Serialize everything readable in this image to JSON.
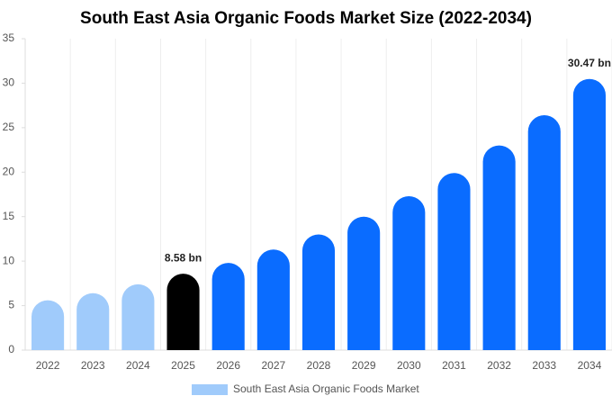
{
  "chart_data": {
    "type": "bar",
    "title": "South East Asia Organic Foods Market Size (2022-2034)",
    "categories": [
      "2022",
      "2023",
      "2024",
      "2025",
      "2026",
      "2027",
      "2028",
      "2029",
      "2030",
      "2031",
      "2032",
      "2033",
      "2034"
    ],
    "series": [
      {
        "name": "South East Asia Organic Foods Market",
        "color": "#a0cbfb",
        "values": [
          5.6,
          6.4,
          7.4,
          8.58,
          9.8,
          11.3,
          13.0,
          15.0,
          17.3,
          19.9,
          23.0,
          26.4,
          30.47
        ],
        "value_labels": [
          null,
          null,
          null,
          "8.58 bn",
          null,
          null,
          null,
          null,
          null,
          null,
          null,
          null,
          "30.47 bn"
        ],
        "colors": [
          "#a0cbfb",
          "#a0cbfb",
          "#a0cbfb",
          "#000000",
          "#0a6cff",
          "#0a6cff",
          "#0a6cff",
          "#0a6cff",
          "#0a6cff",
          "#0a6cff",
          "#0a6cff",
          "#0a6cff",
          "#0a6cff"
        ]
      }
    ],
    "ylim": [
      0,
      35
    ],
    "yticks": [
      0,
      5,
      10,
      15,
      20,
      25,
      30,
      35
    ],
    "grid": true,
    "legend": "bottom"
  }
}
